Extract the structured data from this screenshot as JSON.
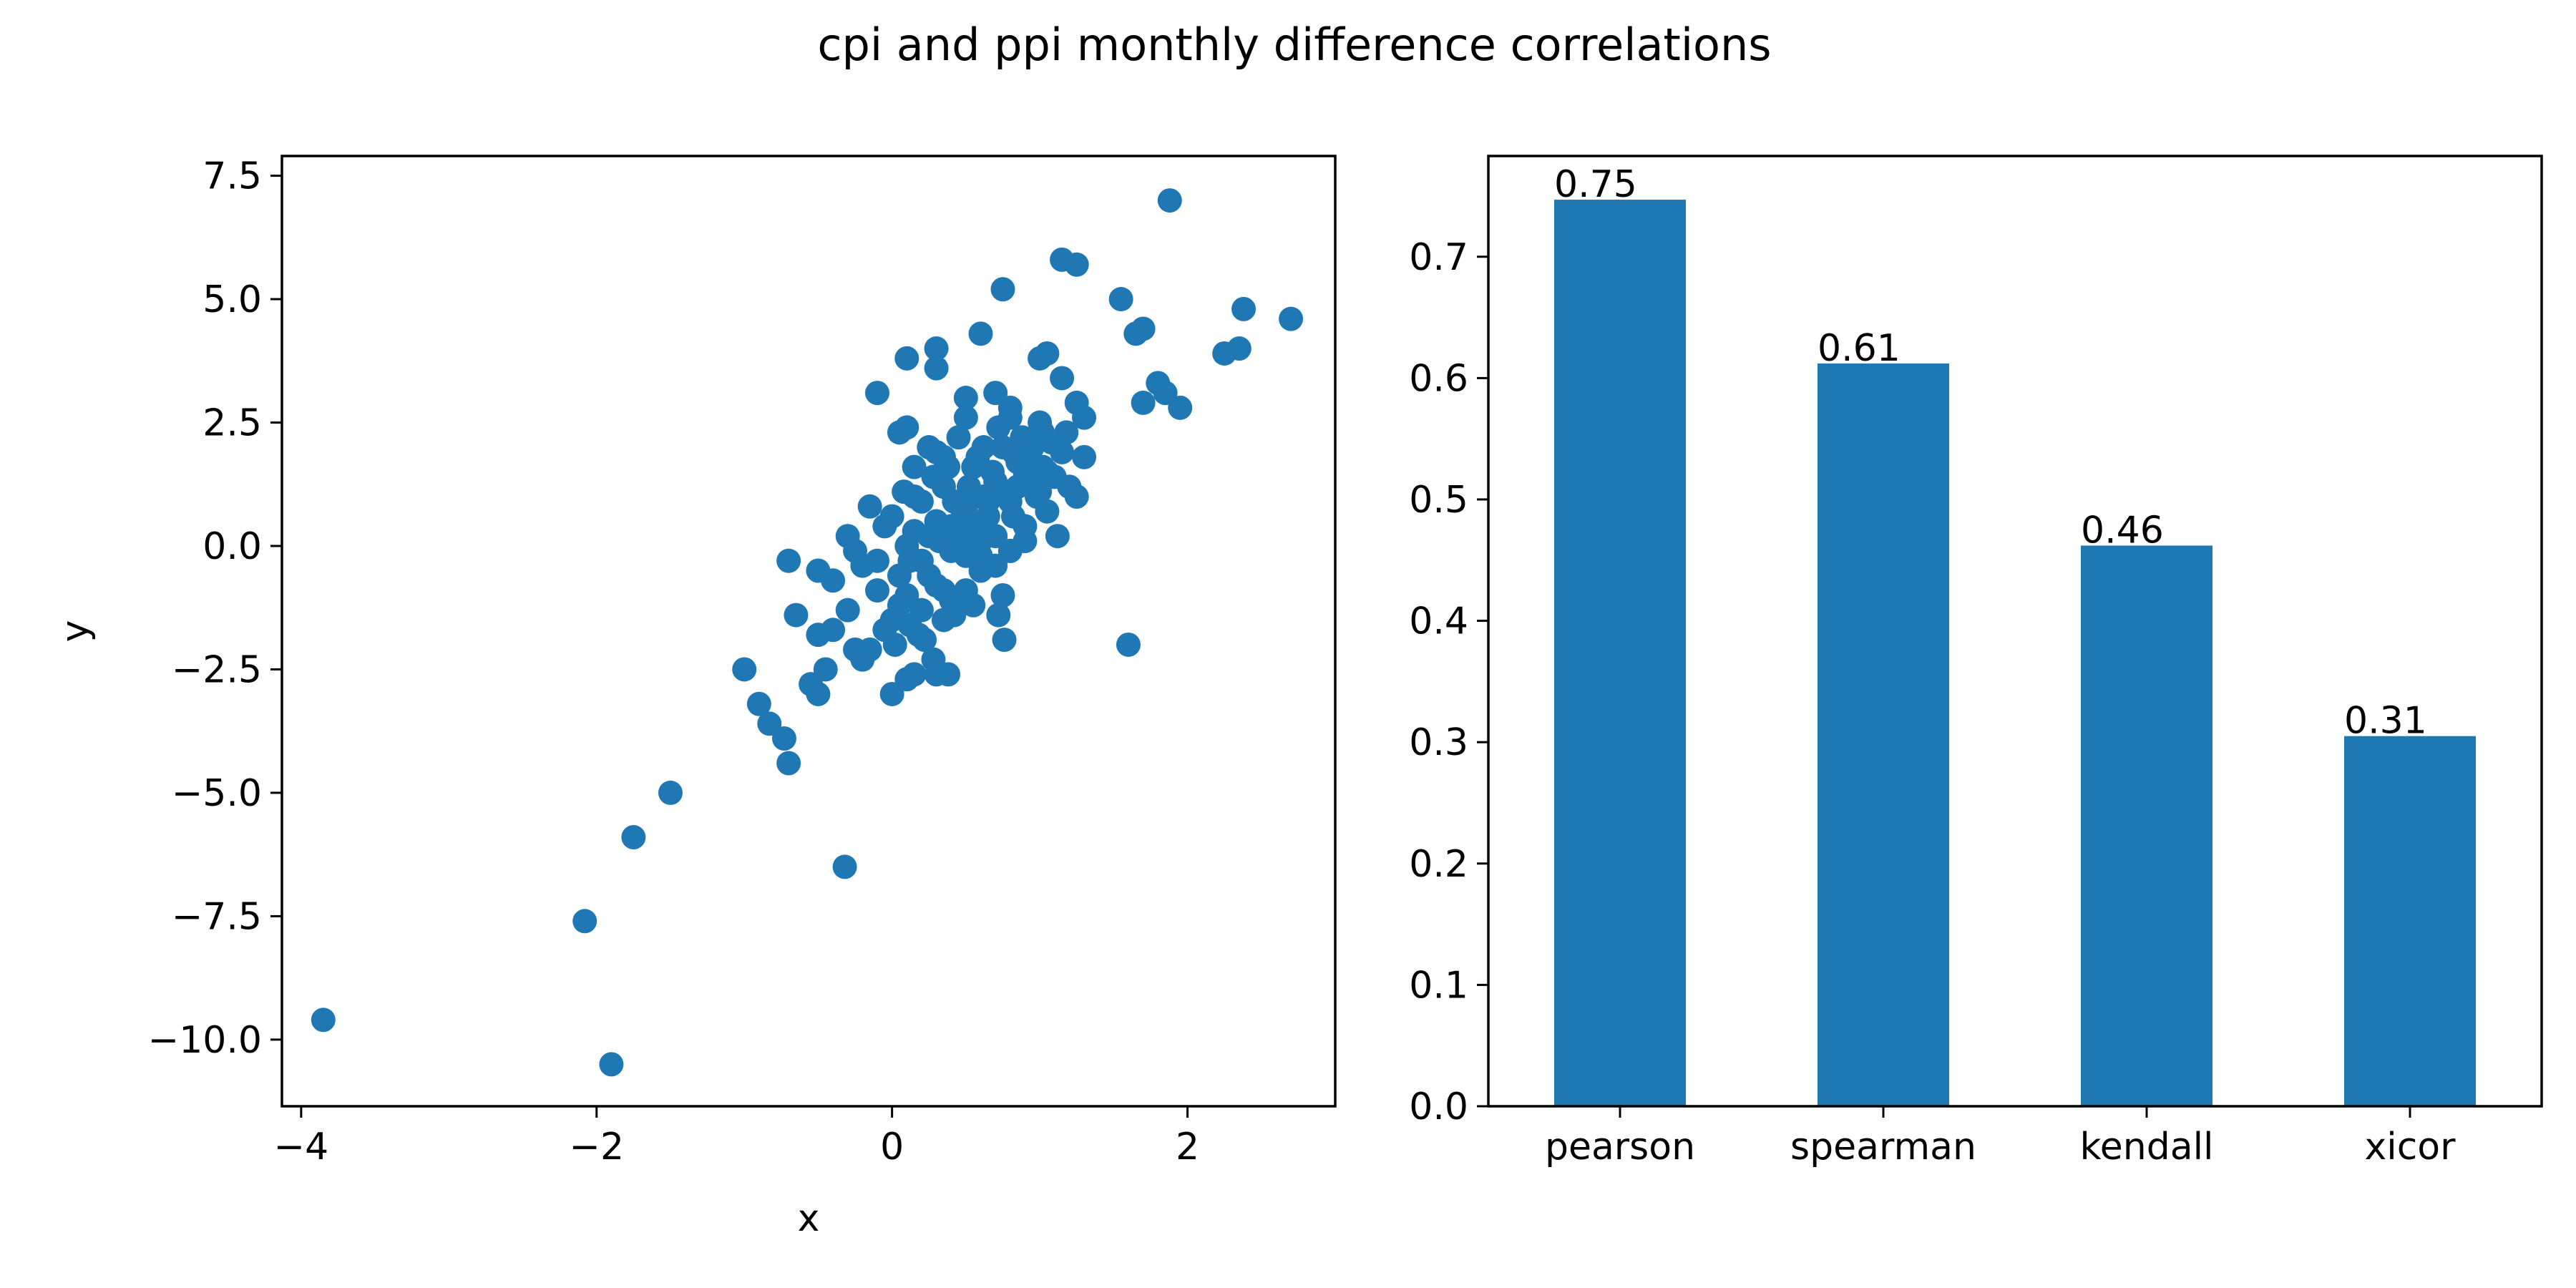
{
  "figure": {
    "suptitle": "cpi and ppi monthly difference correlations",
    "marker_color": "#1f77b4"
  },
  "chart_data": [
    {
      "type": "scatter",
      "title": "",
      "xlabel": "x",
      "ylabel": "y",
      "xlim": [
        -4.13,
        3.0
      ],
      "ylim": [
        -11.35,
        7.9
      ],
      "xticks": [
        -4,
        -2,
        0,
        2
      ],
      "xtick_labels": [
        "−4",
        "−2",
        "0",
        "2"
      ],
      "yticks": [
        -10,
        -7.5,
        -5,
        -2.5,
        0,
        2.5,
        5,
        7.5
      ],
      "ytick_labels": [
        "−10.0",
        "−7.5",
        "−5.0",
        "−2.5",
        "0.0",
        "2.5",
        "5.0",
        "7.5"
      ],
      "grid": false,
      "series": [
        {
          "points": [
            [
              -3.85,
              -9.6
            ],
            [
              -1.9,
              -10.5
            ],
            [
              -2.08,
              -7.6
            ],
            [
              -1.75,
              -5.9
            ],
            [
              -1.5,
              -5.0
            ],
            [
              -0.32,
              -6.5
            ],
            [
              -1.0,
              -2.5
            ],
            [
              -0.9,
              -3.2
            ],
            [
              -0.83,
              -3.6
            ],
            [
              -0.73,
              -3.9
            ],
            [
              -0.7,
              -4.4
            ],
            [
              -0.55,
              -2.8
            ],
            [
              -0.5,
              -3.0
            ],
            [
              -0.45,
              -2.5
            ],
            [
              -0.65,
              -1.4
            ],
            [
              -0.5,
              -1.8
            ],
            [
              -0.4,
              -1.7
            ],
            [
              -0.3,
              -1.3
            ],
            [
              -0.25,
              -2.1
            ],
            [
              -0.2,
              -2.3
            ],
            [
              -0.15,
              -2.1
            ],
            [
              0.0,
              -3.0
            ],
            [
              0.1,
              -2.7
            ],
            [
              0.15,
              -2.6
            ],
            [
              0.3,
              -2.6
            ],
            [
              0.38,
              -2.6
            ],
            [
              -0.7,
              -0.3
            ],
            [
              -0.5,
              -0.5
            ],
            [
              -0.4,
              -0.7
            ],
            [
              -0.3,
              0.2
            ],
            [
              -0.25,
              -0.1
            ],
            [
              -0.2,
              -0.4
            ],
            [
              -0.15,
              0.8
            ],
            [
              -0.1,
              -0.9
            ],
            [
              -0.05,
              0.4
            ],
            [
              0.0,
              0.6
            ],
            [
              0.05,
              -1.2
            ],
            [
              0.08,
              1.1
            ],
            [
              0.12,
              -0.3
            ],
            [
              0.15,
              0.3
            ],
            [
              0.18,
              -1.8
            ],
            [
              0.2,
              0.9
            ],
            [
              0.25,
              -0.6
            ],
            [
              0.28,
              1.4
            ],
            [
              0.3,
              1.9
            ],
            [
              0.32,
              0.1
            ],
            [
              0.35,
              -0.9
            ],
            [
              0.38,
              1.6
            ],
            [
              0.4,
              0.4
            ],
            [
              0.42,
              -1.4
            ],
            [
              0.45,
              2.2
            ],
            [
              0.48,
              0.7
            ],
            [
              0.5,
              -0.2
            ],
            [
              0.52,
              1.2
            ],
            [
              0.55,
              0.5
            ],
            [
              0.58,
              1.8
            ],
            [
              0.6,
              -0.5
            ],
            [
              0.62,
              2.0
            ],
            [
              0.65,
              0.9
            ],
            [
              0.68,
              1.5
            ],
            [
              0.7,
              0.2
            ],
            [
              0.72,
              2.4
            ],
            [
              0.75,
              -1.0
            ],
            [
              0.78,
              1.1
            ],
            [
              0.8,
              2.6
            ],
            [
              0.82,
              0.6
            ],
            [
              0.85,
              1.7
            ],
            [
              0.88,
              2.2
            ],
            [
              0.9,
              0.4
            ],
            [
              0.92,
              1.3
            ],
            [
              0.95,
              2.0
            ],
            [
              0.98,
              1.0
            ],
            [
              1.0,
              2.5
            ],
            [
              1.02,
              1.6
            ],
            [
              1.05,
              0.7
            ],
            [
              1.08,
              2.1
            ],
            [
              1.1,
              1.4
            ],
            [
              1.12,
              0.2
            ],
            [
              1.15,
              1.9
            ],
            [
              1.18,
              2.3
            ],
            [
              1.2,
              1.2
            ],
            [
              1.25,
              1.0
            ],
            [
              1.3,
              1.8
            ],
            [
              0.1,
              0.0
            ],
            [
              0.2,
              -0.3
            ],
            [
              0.3,
              0.5
            ],
            [
              0.4,
              -0.1
            ],
            [
              0.5,
              0.8
            ],
            [
              0.6,
              0.3
            ],
            [
              0.7,
              1.3
            ],
            [
              0.8,
              0.9
            ],
            [
              0.9,
              1.5
            ],
            [
              1.0,
              1.1
            ],
            [
              0.15,
              1.0
            ],
            [
              0.35,
              1.2
            ],
            [
              0.55,
              1.6
            ],
            [
              0.75,
              2.0
            ],
            [
              0.95,
              1.7
            ],
            [
              0.05,
              -0.6
            ],
            [
              0.25,
              0.2
            ],
            [
              0.45,
              0.1
            ],
            [
              0.65,
              0.6
            ],
            [
              0.85,
              1.2
            ],
            [
              1.05,
              1.5
            ],
            [
              -0.1,
              -0.3
            ],
            [
              0.0,
              -1.5
            ],
            [
              0.1,
              -1.0
            ],
            [
              0.2,
              -1.3
            ],
            [
              0.3,
              -0.8
            ],
            [
              0.4,
              -1.1
            ],
            [
              0.5,
              -0.9
            ],
            [
              0.6,
              -0.2
            ],
            [
              0.7,
              -0.4
            ],
            [
              0.8,
              -0.1
            ],
            [
              0.9,
              0.1
            ],
            [
              0.22,
              -1.9
            ],
            [
              0.28,
              -2.3
            ],
            [
              0.12,
              -1.6
            ],
            [
              0.02,
              -2.0
            ],
            [
              -0.05,
              -1.7
            ],
            [
              0.35,
              -1.5
            ],
            [
              0.55,
              -1.2
            ],
            [
              0.72,
              -1.4
            ],
            [
              0.76,
              -1.9
            ],
            [
              0.6,
              0.1
            ],
            [
              0.42,
              0.9
            ],
            [
              0.62,
              1.0
            ],
            [
              0.82,
              1.9
            ],
            [
              1.02,
              2.3
            ],
            [
              -0.1,
              3.1
            ],
            [
              0.05,
              2.3
            ],
            [
              0.1,
              2.4
            ],
            [
              0.1,
              3.8
            ],
            [
              0.3,
              4.0
            ],
            [
              0.3,
              3.6
            ],
            [
              0.5,
              3.0
            ],
            [
              0.5,
              2.6
            ],
            [
              0.6,
              4.3
            ],
            [
              0.75,
              5.2
            ],
            [
              0.7,
              3.1
            ],
            [
              0.8,
              2.8
            ],
            [
              1.0,
              3.8
            ],
            [
              1.05,
              3.9
            ],
            [
              1.15,
              3.4
            ],
            [
              1.15,
              5.8
            ],
            [
              1.25,
              5.7
            ],
            [
              1.25,
              2.9
            ],
            [
              1.3,
              2.6
            ],
            [
              1.55,
              5.0
            ],
            [
              1.65,
              4.3
            ],
            [
              1.7,
              4.4
            ],
            [
              1.7,
              2.9
            ],
            [
              1.8,
              3.3
            ],
            [
              1.85,
              3.1
            ],
            [
              1.95,
              2.8
            ],
            [
              1.88,
              7.0
            ],
            [
              2.25,
              3.9
            ],
            [
              2.35,
              4.0
            ],
            [
              2.38,
              4.8
            ],
            [
              2.7,
              4.6
            ],
            [
              1.6,
              -2.0
            ],
            [
              0.15,
              1.6
            ],
            [
              0.25,
              2.0
            ],
            [
              0.35,
              1.8
            ],
            [
              0.45,
              0.3
            ]
          ]
        }
      ]
    },
    {
      "type": "bar",
      "title": "",
      "xlabel": "",
      "ylabel": "",
      "categories": [
        "pearson",
        "spearman",
        "kendall",
        "xicor"
      ],
      "values": [
        0.747,
        0.612,
        0.462,
        0.305
      ],
      "data_labels": [
        "0.75",
        "0.61",
        "0.46",
        "0.31"
      ],
      "ylim": [
        0,
        0.783
      ],
      "yticks": [
        0.0,
        0.1,
        0.2,
        0.3,
        0.4,
        0.5,
        0.6,
        0.7
      ],
      "ytick_labels": [
        "0.0",
        "0.1",
        "0.2",
        "0.3",
        "0.4",
        "0.5",
        "0.6",
        "0.7"
      ],
      "grid": false
    }
  ]
}
